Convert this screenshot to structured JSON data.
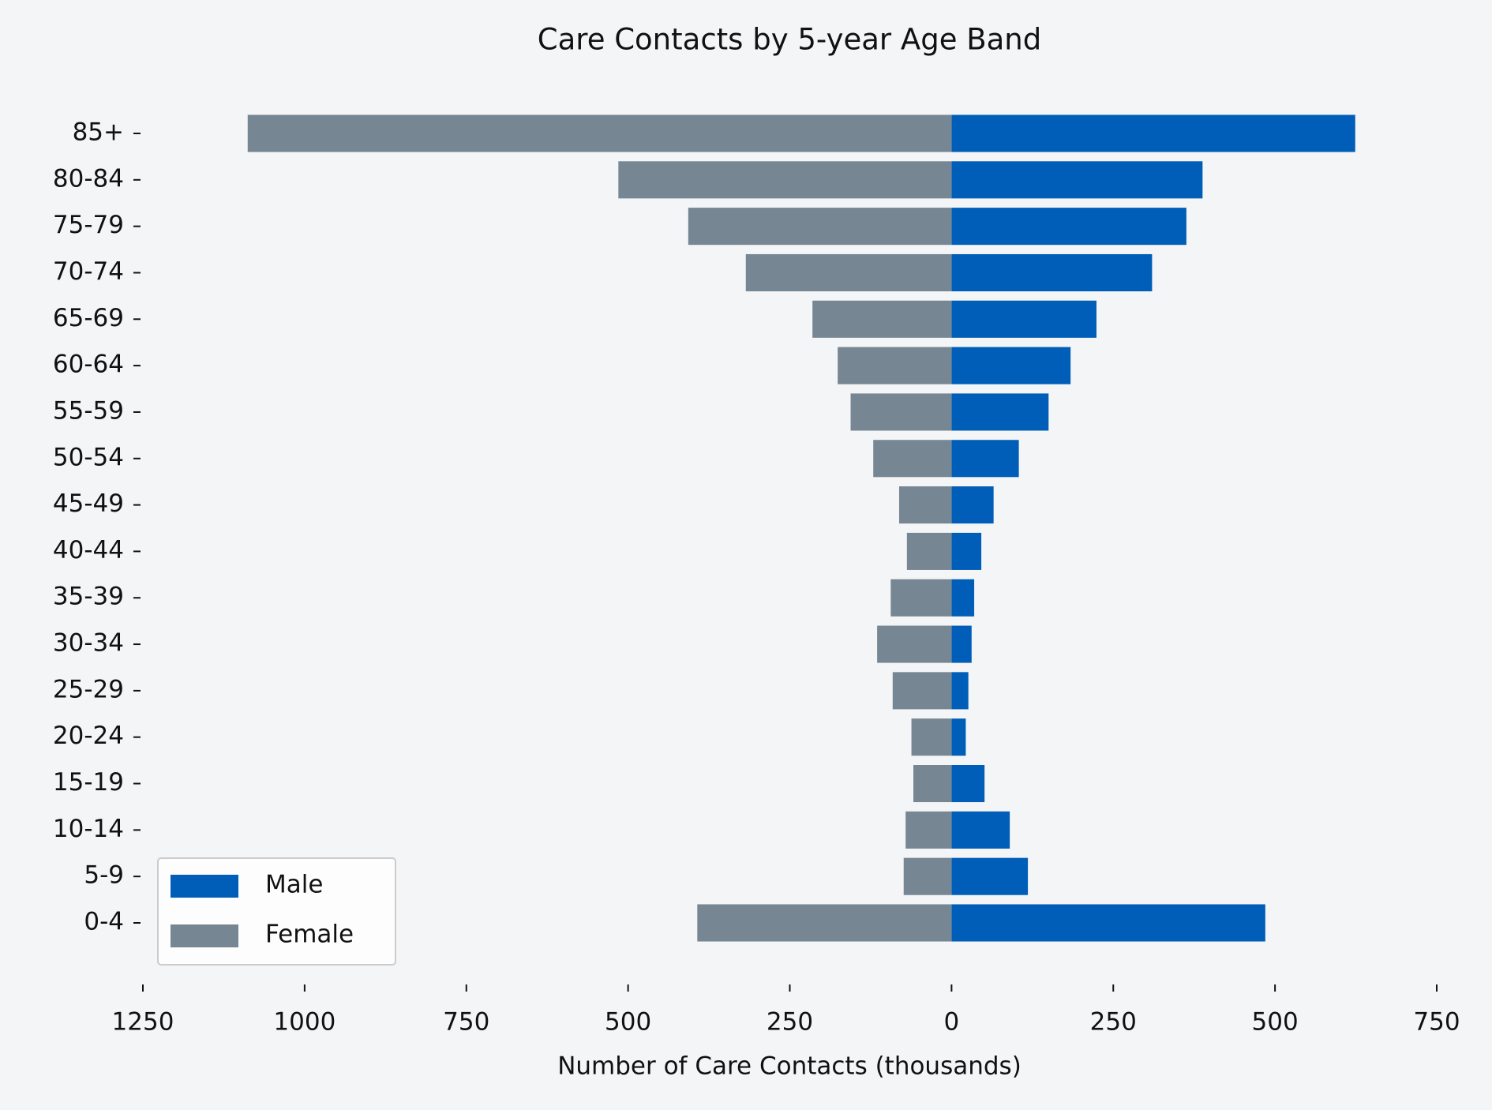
{
  "chart_data": {
    "type": "pyramid",
    "title": "Care Contacts by 5-year Age Band",
    "xlabel": "Number of Care Contacts (thousands)",
    "categories": [
      "0-4",
      "5-9",
      "10-14",
      "15-19",
      "20-24",
      "25-29",
      "30-34",
      "35-39",
      "40-44",
      "45-49",
      "50-54",
      "55-59",
      "60-64",
      "65-69",
      "70-74",
      "75-79",
      "80-84",
      "85+"
    ],
    "series": [
      {
        "name": "Male",
        "color": "#005eb8",
        "values": [
          485,
          118,
          90,
          51,
          22,
          26,
          31,
          35,
          46,
          65,
          104,
          150,
          184,
          224,
          310,
          363,
          388,
          624
        ]
      },
      {
        "name": "Female",
        "color": "#768692",
        "values": [
          -393,
          -74,
          -71,
          -59,
          -62,
          -91,
          -115,
          -94,
          -69,
          -81,
          -121,
          -156,
          -176,
          -215,
          -318,
          -407,
          -515,
          -1088
        ]
      }
    ],
    "xlim": [
      -1250,
      750
    ],
    "xticks": [
      {
        "value": -1250,
        "label": "1250"
      },
      {
        "value": -1000,
        "label": "1000"
      },
      {
        "value": -750,
        "label": "750"
      },
      {
        "value": -500,
        "label": "500"
      },
      {
        "value": -250,
        "label": "250"
      },
      0,
      250,
      500,
      750
    ],
    "legend": "lower left"
  }
}
